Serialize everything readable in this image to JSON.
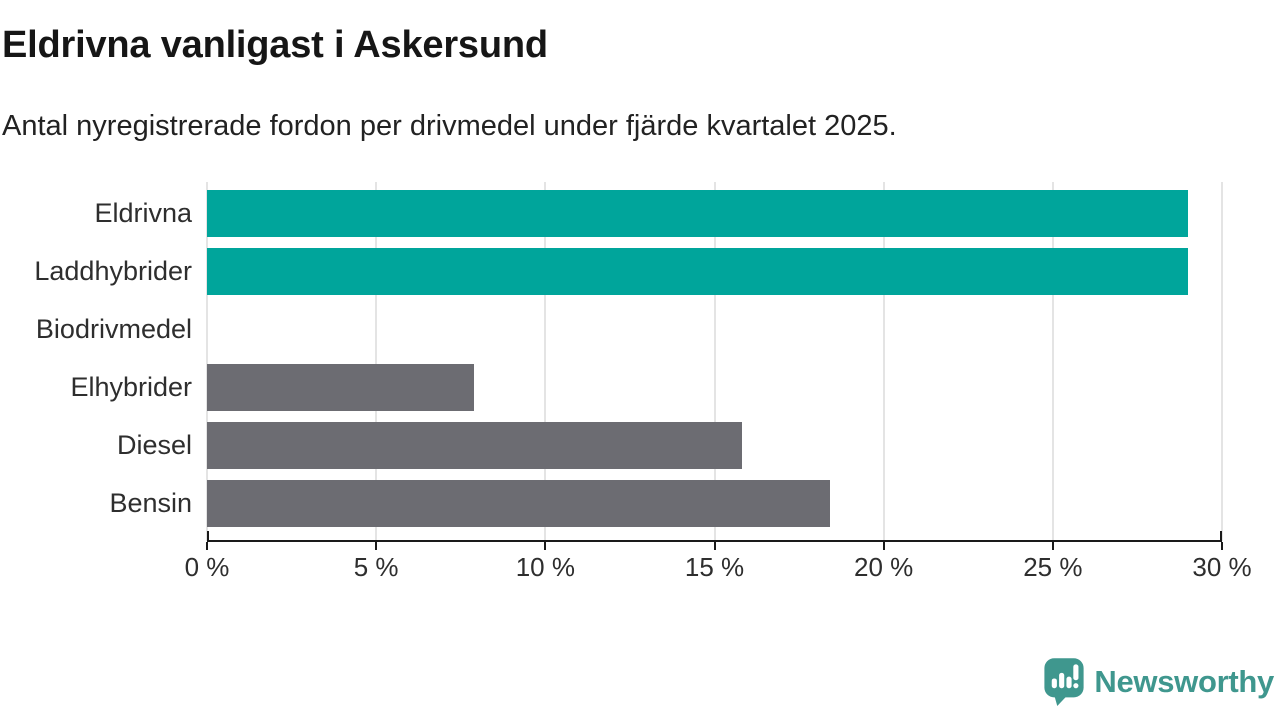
{
  "header": {
    "title": "Eldrivna vanligast i Askersund",
    "subtitle": "Antal nyregistrerade fordon per drivmedel under fjärde kvartalet 2025."
  },
  "chart_data": {
    "type": "bar",
    "orientation": "horizontal",
    "title": "Eldrivna vanligast i Askersund",
    "subtitle": "Antal nyregistrerade fordon per drivmedel under fjärde kvartalet 2025.",
    "categories": [
      "Eldrivna",
      "Laddhybrider",
      "Biodrivmedel",
      "Elhybrider",
      "Diesel",
      "Bensin"
    ],
    "values": [
      29,
      29,
      0,
      7.9,
      15.8,
      18.4
    ],
    "unit": "%",
    "xlabel": "",
    "ylabel": "",
    "xlim": [
      0,
      30
    ],
    "x_ticks": [
      0,
      5,
      10,
      15,
      20,
      25,
      30
    ],
    "x_tick_labels": [
      "0 %",
      "5 %",
      "10 %",
      "15 %",
      "20 %",
      "25 %",
      "30 %"
    ],
    "bar_colors": [
      "#00a59b",
      "#00a59b",
      "#00a59b",
      "#6c6c72",
      "#6c6c72",
      "#6c6c72"
    ],
    "grid": true,
    "legend": "none"
  },
  "colors": {
    "accent_teal": "#00a59b",
    "bar_gray": "#6c6c72",
    "gridline": "#e4e4e4",
    "axis": "#1a1a1a",
    "logo_teal": "#3f978e"
  },
  "footer": {
    "logo_text": "Newsworthy"
  }
}
